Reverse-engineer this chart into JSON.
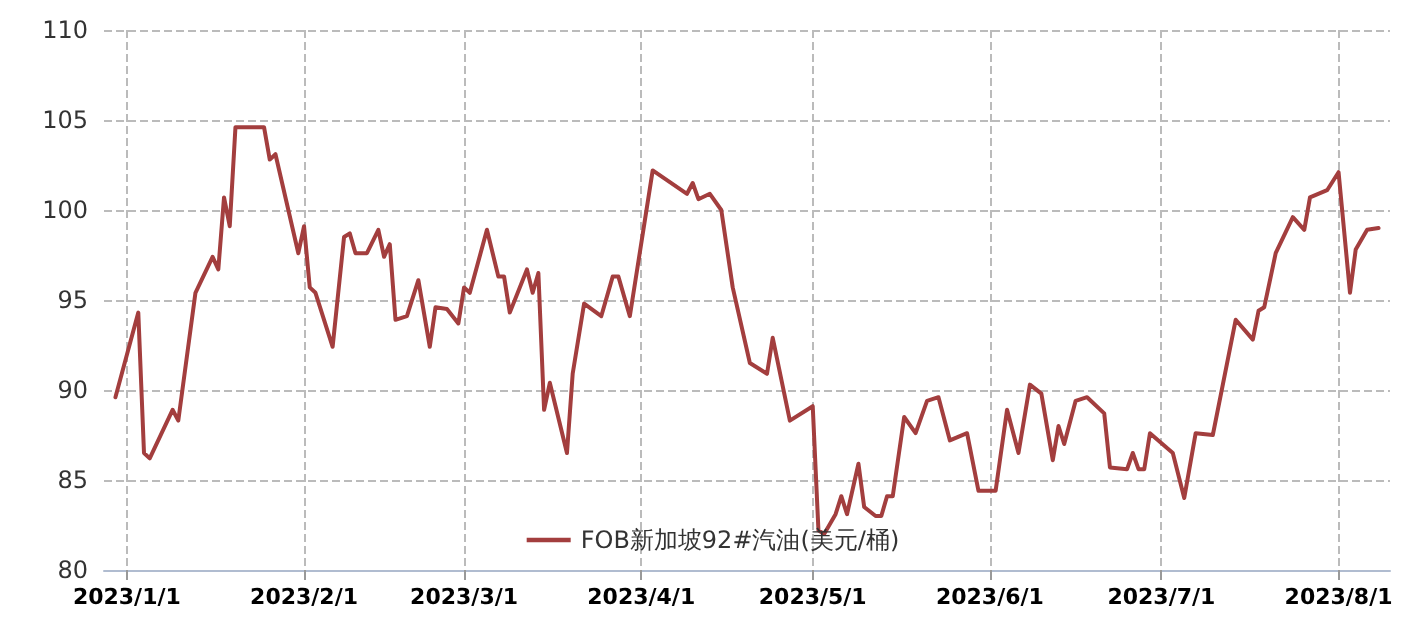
{
  "chart_data": {
    "type": "line",
    "x": [
      "2022-12-30",
      "2023-01-03",
      "2023-01-04",
      "2023-01-05",
      "2023-01-09",
      "2023-01-10",
      "2023-01-13",
      "2023-01-16",
      "2023-01-17",
      "2023-01-18",
      "2023-01-19",
      "2023-01-20",
      "2023-01-25",
      "2023-01-26",
      "2023-01-27",
      "2023-01-31",
      "2023-02-01",
      "2023-02-02",
      "2023-02-03",
      "2023-02-06",
      "2023-02-08",
      "2023-02-09",
      "2023-02-10",
      "2023-02-12",
      "2023-02-14",
      "2023-02-15",
      "2023-02-16",
      "2023-02-17",
      "2023-02-19",
      "2023-02-21",
      "2023-02-23",
      "2023-02-24",
      "2023-02-26",
      "2023-02-28",
      "2023-03-01",
      "2023-03-02",
      "2023-03-05",
      "2023-03-07",
      "2023-03-08",
      "2023-03-09",
      "2023-03-12",
      "2023-03-13",
      "2023-03-14",
      "2023-03-15",
      "2023-03-16",
      "2023-03-19",
      "2023-03-20",
      "2023-03-22",
      "2023-03-25",
      "2023-03-27",
      "2023-03-28",
      "2023-03-30",
      "2023-04-03",
      "2023-04-09",
      "2023-04-10",
      "2023-04-11",
      "2023-04-13",
      "2023-04-15",
      "2023-04-17",
      "2023-04-20",
      "2023-04-23",
      "2023-04-24",
      "2023-04-27",
      "2023-05-01",
      "2023-05-02",
      "2023-05-03",
      "2023-05-05",
      "2023-05-06",
      "2023-05-07",
      "2023-05-09",
      "2023-05-10",
      "2023-05-12",
      "2023-05-13",
      "2023-05-14",
      "2023-05-15",
      "2023-05-17",
      "2023-05-19",
      "2023-05-21",
      "2023-05-23",
      "2023-05-25",
      "2023-05-28",
      "2023-05-30",
      "2023-06-02",
      "2023-06-04",
      "2023-06-06",
      "2023-06-08",
      "2023-06-10",
      "2023-06-12",
      "2023-06-13",
      "2023-06-14",
      "2023-06-16",
      "2023-06-18",
      "2023-06-21",
      "2023-06-22",
      "2023-06-25",
      "2023-06-26",
      "2023-06-27",
      "2023-06-28",
      "2023-06-29",
      "2023-07-03",
      "2023-07-05",
      "2023-07-07",
      "2023-07-10",
      "2023-07-14",
      "2023-07-17",
      "2023-07-18",
      "2023-07-19",
      "2023-07-21",
      "2023-07-24",
      "2023-07-26",
      "2023-07-27",
      "2023-07-30",
      "2023-08-01",
      "2023-08-03",
      "2023-08-04",
      "2023-08-06",
      "2023-08-08"
    ],
    "series": [
      {
        "name": "FOB新加坡92#汽油(美元/桶)",
        "color": "#a33e3e",
        "values": [
          89.6,
          94.3,
          86.5,
          86.2,
          88.9,
          88.3,
          95.4,
          97.4,
          96.7,
          100.7,
          99.1,
          104.6,
          104.6,
          102.8,
          103.1,
          97.6,
          99.1,
          95.7,
          95.4,
          92.4,
          98.5,
          98.7,
          97.6,
          97.6,
          98.9,
          97.4,
          98.1,
          93.9,
          94.1,
          96.1,
          92.4,
          94.6,
          94.5,
          93.7,
          95.7,
          95.4,
          98.9,
          96.3,
          96.3,
          94.3,
          96.7,
          95.4,
          96.5,
          88.9,
          90.4,
          86.5,
          90.9,
          94.8,
          94.1,
          96.3,
          96.3,
          94.1,
          102.2,
          100.9,
          101.5,
          100.6,
          100.9,
          100.0,
          95.7,
          91.5,
          90.9,
          92.9,
          88.3,
          89.1,
          82.2,
          82.0,
          83.1,
          84.1,
          83.1,
          85.9,
          83.5,
          83.0,
          83.0,
          84.1,
          84.1,
          88.5,
          87.6,
          89.4,
          89.6,
          87.2,
          87.6,
          84.4,
          84.4,
          88.9,
          86.5,
          90.3,
          89.8,
          86.1,
          88.0,
          87.0,
          89.4,
          89.6,
          88.7,
          85.7,
          85.6,
          86.5,
          85.6,
          85.6,
          87.6,
          86.5,
          84.0,
          87.6,
          87.5,
          93.9,
          92.8,
          94.4,
          94.6,
          97.6,
          99.6,
          98.9,
          100.7,
          101.1,
          102.1,
          95.4,
          97.8,
          98.9,
          99.0
        ]
      }
    ],
    "xlim": [
      "2022-12-28",
      "2023-08-10"
    ],
    "xticks": [
      {
        "value": "2023-01-01",
        "label": "2023/1/1"
      },
      {
        "value": "2023-02-01",
        "label": "2023/2/1"
      },
      {
        "value": "2023-03-01",
        "label": "2023/3/1"
      },
      {
        "value": "2023-04-01",
        "label": "2023/4/1"
      },
      {
        "value": "2023-05-01",
        "label": "2023/5/1"
      },
      {
        "value": "2023-06-01",
        "label": "2023/6/1"
      },
      {
        "value": "2023-07-01",
        "label": "2023/7/1"
      },
      {
        "value": "2023-08-01",
        "label": "2023/8/1"
      }
    ],
    "ylim": [
      80,
      110
    ],
    "yticks": [
      80,
      85,
      90,
      95,
      100,
      105,
      110
    ],
    "grid": true,
    "legend": "bottom",
    "marker": "none",
    "line_style": "solid"
  }
}
